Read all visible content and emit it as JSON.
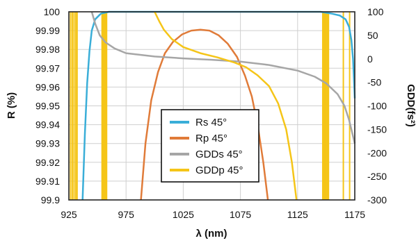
{
  "chart_data": {
    "type": "line",
    "title": "",
    "xlabel": "λ (nm)",
    "ylabel_left": "R (%)",
    "ylabel_right": "GDD(fs²)",
    "x_range": [
      925,
      1175
    ],
    "y_left_range": [
      99.9,
      100
    ],
    "y_right_range": [
      -300,
      100
    ],
    "x_ticks": [
      "925",
      "975",
      "1025",
      "1075",
      "1125",
      "1175"
    ],
    "y_left_ticks": [
      "100",
      "99.99",
      "99.98",
      "99.97",
      "99.96",
      "99.95",
      "99.94",
      "99.93",
      "99.92",
      "99.91",
      "99.9"
    ],
    "y_right_ticks": [
      "100",
      "50",
      "0",
      "-50",
      "-100",
      "-150",
      "-200",
      "-250",
      "-300"
    ],
    "grid": true,
    "legend_position": "center-bottom",
    "series": [
      {
        "name": "Rs 45°",
        "color": "#3aaed8",
        "axis": "left",
        "points": [
          [
            937,
            99.9
          ],
          [
            939,
            99.935
          ],
          [
            941,
            99.962
          ],
          [
            943,
            99.979
          ],
          [
            945,
            99.99
          ],
          [
            948,
            99.996
          ],
          [
            953,
            99.999
          ],
          [
            960,
            100
          ],
          [
            1000,
            100
          ],
          [
            1100,
            100
          ],
          [
            1145,
            100
          ],
          [
            1155,
            99.999
          ],
          [
            1162,
            99.998
          ],
          [
            1167,
            99.996
          ],
          [
            1170,
            99.992
          ],
          [
            1172,
            99.985
          ],
          [
            1173.5,
            99.975
          ],
          [
            1175,
            99.954
          ]
        ]
      },
      {
        "name": "Rp 45°",
        "color": "#e07b39",
        "axis": "left",
        "points": [
          [
            988,
            99.9
          ],
          [
            992,
            99.93
          ],
          [
            997,
            99.953
          ],
          [
            1003,
            99.968
          ],
          [
            1009,
            99.978
          ],
          [
            1016,
            99.984
          ],
          [
            1024,
            99.988
          ],
          [
            1032,
            99.99
          ],
          [
            1040,
            99.9905
          ],
          [
            1048,
            99.99
          ],
          [
            1056,
            99.9875
          ],
          [
            1064,
            99.983
          ],
          [
            1072,
            99.976
          ],
          [
            1079,
            99.966
          ],
          [
            1085,
            99.955
          ],
          [
            1090,
            99.94
          ],
          [
            1095,
            99.92
          ],
          [
            1099,
            99.9
          ]
        ]
      },
      {
        "name": "GDDs 45°",
        "color": "#a6a6a6",
        "axis": "right",
        "points": [
          [
            945,
            100
          ],
          [
            948,
            75
          ],
          [
            952,
            50
          ],
          [
            957,
            35
          ],
          [
            965,
            22
          ],
          [
            975,
            12
          ],
          [
            1000,
            5
          ],
          [
            1025,
            1
          ],
          [
            1050,
            -2
          ],
          [
            1075,
            -6
          ],
          [
            1100,
            -13
          ],
          [
            1125,
            -25
          ],
          [
            1140,
            -38
          ],
          [
            1150,
            -52
          ],
          [
            1160,
            -75
          ],
          [
            1166,
            -100
          ],
          [
            1170,
            -130
          ],
          [
            1175,
            -180
          ]
        ]
      },
      {
        "name": "GDDp 45°",
        "color": "#f5c518",
        "axis": "right",
        "points": [
          [
            1000,
            100
          ],
          [
            1004,
            80
          ],
          [
            1008,
            62
          ],
          [
            1015,
            42
          ],
          [
            1025,
            25
          ],
          [
            1040,
            12
          ],
          [
            1055,
            3
          ],
          [
            1070,
            -8
          ],
          [
            1080,
            -18
          ],
          [
            1090,
            -35
          ],
          [
            1100,
            -58
          ],
          [
            1108,
            -95
          ],
          [
            1115,
            -150
          ],
          [
            1120,
            -220
          ],
          [
            1124,
            -300
          ]
        ]
      }
    ],
    "cavity_bands": {
      "color": "#f5c518",
      "x": [
        926.5,
        928,
        929.5,
        931,
        932.2,
        954,
        955,
        956,
        957,
        958,
        1147,
        1148,
        1149,
        1150,
        1151,
        1152,
        1165,
        1170.5
      ]
    }
  }
}
